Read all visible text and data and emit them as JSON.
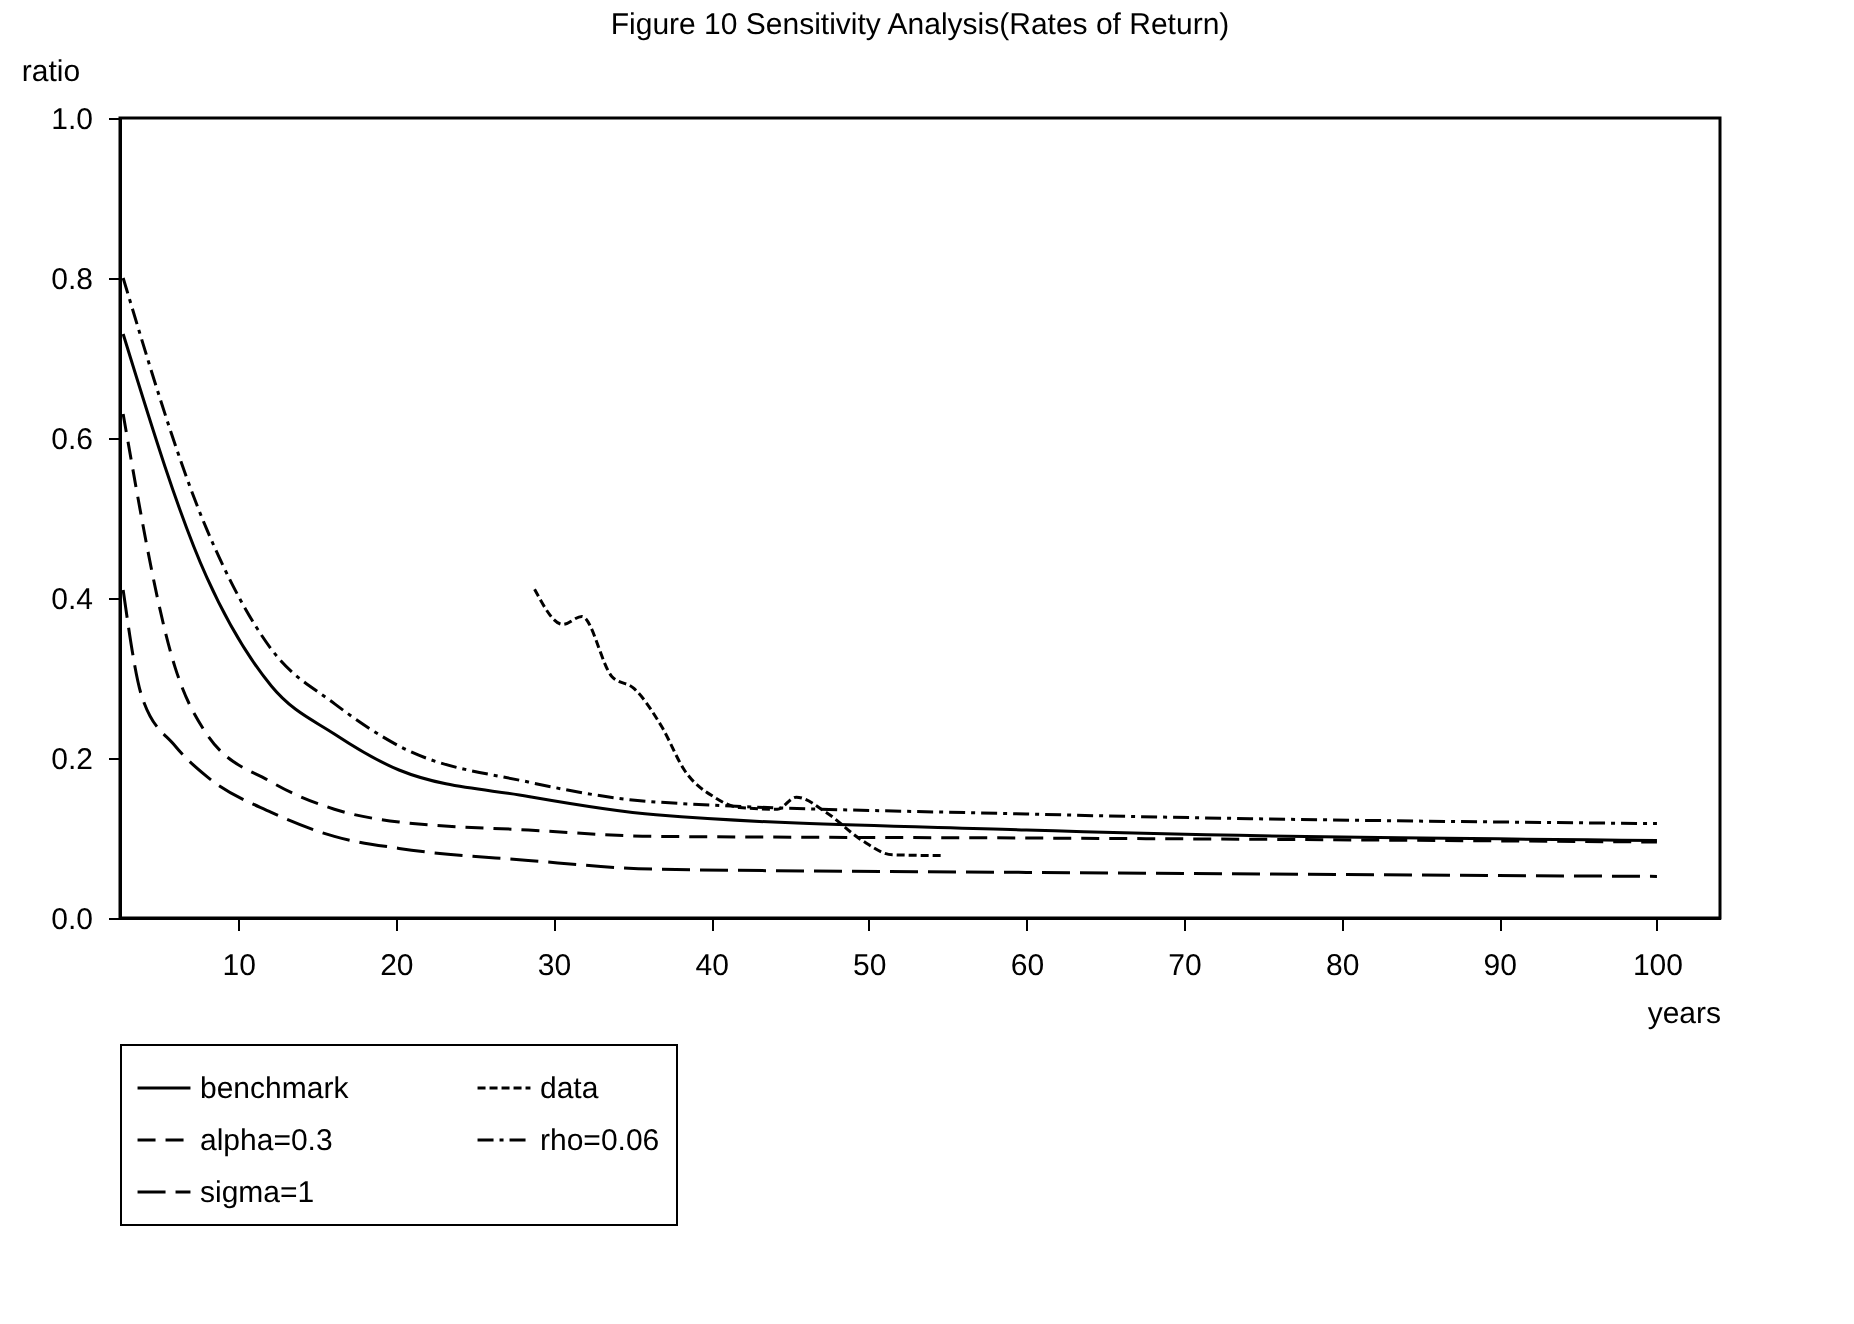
{
  "chart_data": {
    "type": "line",
    "title": "Figure 10    Sensitivity Analysis(Rates of Return)",
    "xlabel": "years",
    "ylabel": "ratio",
    "xlim": [
      2.5,
      104
    ],
    "xticks": [
      10,
      20,
      30,
      40,
      50,
      60,
      70,
      80,
      90,
      100
    ],
    "ylim": [
      0,
      1
    ],
    "yticks": [
      {
        "value": 0,
        "label": "0.0"
      },
      {
        "value": 0.2,
        "label": "0.2"
      },
      {
        "value": 0.4,
        "label": "0.4"
      },
      {
        "value": 0.6,
        "label": "0.6"
      },
      {
        "value": 0.8,
        "label": "0.8"
      },
      {
        "value": 1,
        "label": "1.0"
      }
    ],
    "grid": false,
    "legend": "bottom",
    "marker": "none",
    "series": [
      {
        "name": "benchmark",
        "color": "#000000",
        "line_style": "solid",
        "x": [
          2.7,
          8,
          12.1,
          16.1,
          20.2,
          28.4,
          36.5,
          60,
          100
        ],
        "values": [
          0.73,
          0.426,
          0.29,
          0.23,
          0.185,
          0.152,
          0.129,
          0.11,
          0.097
        ]
      },
      {
        "name": "data",
        "color": "#000000",
        "line_style": "dotted",
        "x": [
          28.8,
          30.6,
          31.8,
          33.7,
          35.1,
          36.9,
          38.3,
          40.2,
          41.8,
          44.2,
          45.4,
          47.3,
          49.5,
          51.5,
          54.8
        ],
        "values": [
          0.411,
          0.367,
          0.377,
          0.302,
          0.287,
          0.238,
          0.185,
          0.151,
          0.138,
          0.136,
          0.151,
          0.132,
          0.098,
          0.079,
          0.078
        ]
      },
      {
        "name": "alpha=0.3",
        "color": "#000000",
        "line_style": "dashed",
        "x": [
          2.7,
          6,
          8,
          12.1,
          16.1,
          20.2,
          28.4,
          36.5,
          60,
          100
        ],
        "values": [
          0.63,
          0.313,
          0.23,
          0.17,
          0.136,
          0.12,
          0.11,
          0.102,
          0.1,
          0.095
        ]
      },
      {
        "name": "rho=0.06",
        "color": "#000000",
        "line_style": "dashed",
        "x": [
          2.7,
          8,
          12.1,
          16.1,
          20.2,
          28.4,
          36.5,
          60,
          100
        ],
        "values": [
          0.8,
          0.486,
          0.336,
          0.268,
          0.215,
          0.17,
          0.145,
          0.13,
          0.118
        ]
      },
      {
        "name": "sigma=1",
        "color": "#000000",
        "line_style": "dashed",
        "x": [
          2.7,
          3.9,
          6,
          8,
          12.1,
          16.1,
          20.2,
          28.4,
          36.5,
          60,
          100
        ],
        "values": [
          0.41,
          0.276,
          0.215,
          0.177,
          0.132,
          0.102,
          0.087,
          0.072,
          0.061,
          0.057,
          0.052
        ]
      }
    ]
  }
}
